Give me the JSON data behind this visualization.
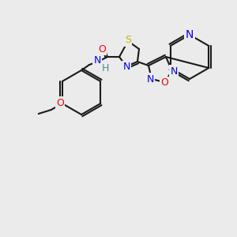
{
  "bg_color": "#ebebeb",
  "bond_color": "#1a1a1a",
  "bond_width": 1.5,
  "atom_colors": {
    "S": "#c8b400",
    "N": "#0000ff",
    "O": "#ff0000",
    "H": "#4a8a8a",
    "C": "#1a1a1a"
  },
  "font_size": 9,
  "fig_size": [
    3.0,
    3.0
  ],
  "dpi": 100
}
